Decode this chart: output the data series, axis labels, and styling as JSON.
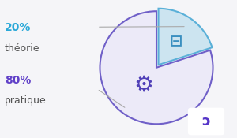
{
  "slices": [
    20,
    80
  ],
  "labels": [
    "théorie",
    "pratique"
  ],
  "percentages": [
    "20%",
    "80%"
  ],
  "colors": [
    "#cce4f0",
    "#eceaf8"
  ],
  "edge_colors": [
    "#5ab0d8",
    "#7060c8"
  ],
  "edge_width": 1.5,
  "explode": [
    0.06,
    0.0
  ],
  "startangle": 90,
  "pct_colors": [
    "#2aa8d8",
    "#6040c8"
  ],
  "label_color": "#555555",
  "background_color": "#f5f5f8",
  "pie_bg": "#e8e6f2",
  "figsize": [
    3.0,
    1.75
  ],
  "dpi": 100,
  "leader_color": "#aaaaaa",
  "icon_color_theory": "#3a8fc0",
  "icon_color_practice": "#5040b8"
}
